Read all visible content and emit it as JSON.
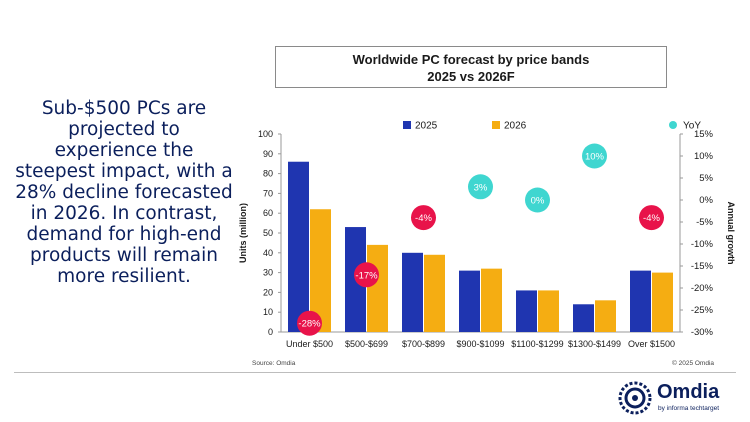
{
  "headline": "Sub-$500 PCs are projected to experience the steepest impact, with a 28% decline forecasted in 2026. In contrast, demand for high-end products will remain more resilient.",
  "chart_data": {
    "type": "bar",
    "title_line1": "Worldwide PC forecast by price bands",
    "title_line2": "2025 vs 2026F",
    "categories": [
      "Under $500",
      "$500-$699",
      "$700-$899",
      "$900-$1099",
      "$1100-$1299",
      "$1300-$1499",
      "Over $1500"
    ],
    "series": [
      {
        "name": "2025",
        "values": [
          86,
          53,
          40,
          31,
          21,
          14,
          31
        ],
        "color": "#1f35b0"
      },
      {
        "name": "2026",
        "values": [
          62,
          44,
          39,
          32,
          21,
          16,
          30
        ],
        "color": "#f5ad12"
      }
    ],
    "yoy": {
      "name": "YoY",
      "values": [
        -28,
        -17,
        -4,
        3,
        0,
        10,
        -4
      ],
      "labels": [
        "-28%",
        "-17%",
        "-4%",
        "3%",
        "0%",
        "10%",
        "-4%"
      ],
      "positive_color": "#3fd6d0",
      "negative_color": "#e8134a"
    },
    "ylabel": "Units (million)",
    "y2label": "Annual growth",
    "ylim": [
      0,
      100
    ],
    "yticks": [
      "0",
      "10",
      "20",
      "30",
      "40",
      "50",
      "60",
      "70",
      "80",
      "90",
      "100"
    ],
    "y2lim": [
      -30,
      15
    ],
    "y2ticks": [
      "15%",
      "10%",
      "5%",
      "0%",
      "-5%",
      "-10%",
      "-15%",
      "-20%",
      "-25%",
      "-30%"
    ],
    "legend_position": "top-center",
    "grid": false
  },
  "footer": {
    "source": "Source: Omdia",
    "copyright": "© 2025 Omdia"
  },
  "logo": {
    "name": "Omdia",
    "tagline": "by informa techtarget"
  }
}
